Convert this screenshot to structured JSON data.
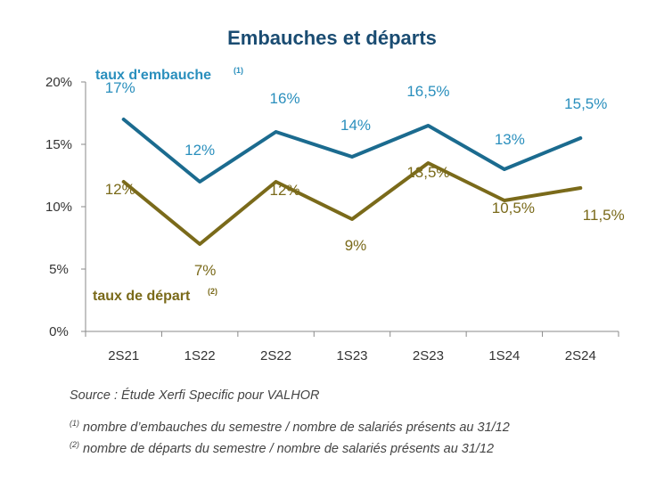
{
  "chart_data": {
    "type": "line",
    "title": "Embauches et départs",
    "categories": [
      "2S21",
      "1S22",
      "2S22",
      "1S23",
      "2S23",
      "1S24",
      "2S24"
    ],
    "y_ticks": [
      "0%",
      "5%",
      "10%",
      "15%",
      "20%"
    ],
    "ylim": [
      0,
      20
    ],
    "grid": false,
    "series": [
      {
        "name": "taux d'embauche",
        "note_marker": "(1)",
        "color": "#1b6b8f",
        "label_color": "#2a8fbd",
        "values": [
          17,
          12,
          16,
          14,
          16.5,
          13,
          15.5
        ],
        "labels": [
          "17%",
          "12%",
          "16%",
          "14%",
          "16,5%",
          "13%",
          "15,5%"
        ]
      },
      {
        "name": "taux de départ",
        "note_marker": "(2)",
        "color": "#7a6a1a",
        "label_color": "#7a6a1a",
        "values": [
          12,
          7,
          12,
          9,
          13.5,
          10.5,
          11.5
        ],
        "labels": [
          "12%",
          "7%",
          "12%",
          "9%",
          "13,5%",
          "10,5%",
          "11,5%"
        ]
      }
    ]
  },
  "footer": {
    "source": "Source : Étude Xerfi Specific pour VALHOR",
    "note1_marker": "(1)",
    "note1": " nombre d’embauches du semestre / nombre de salariés présents au 31/12",
    "note2_marker": "(2)",
    "note2": " nombre de départs du semestre / nombre de salariés présents au 31/12"
  }
}
